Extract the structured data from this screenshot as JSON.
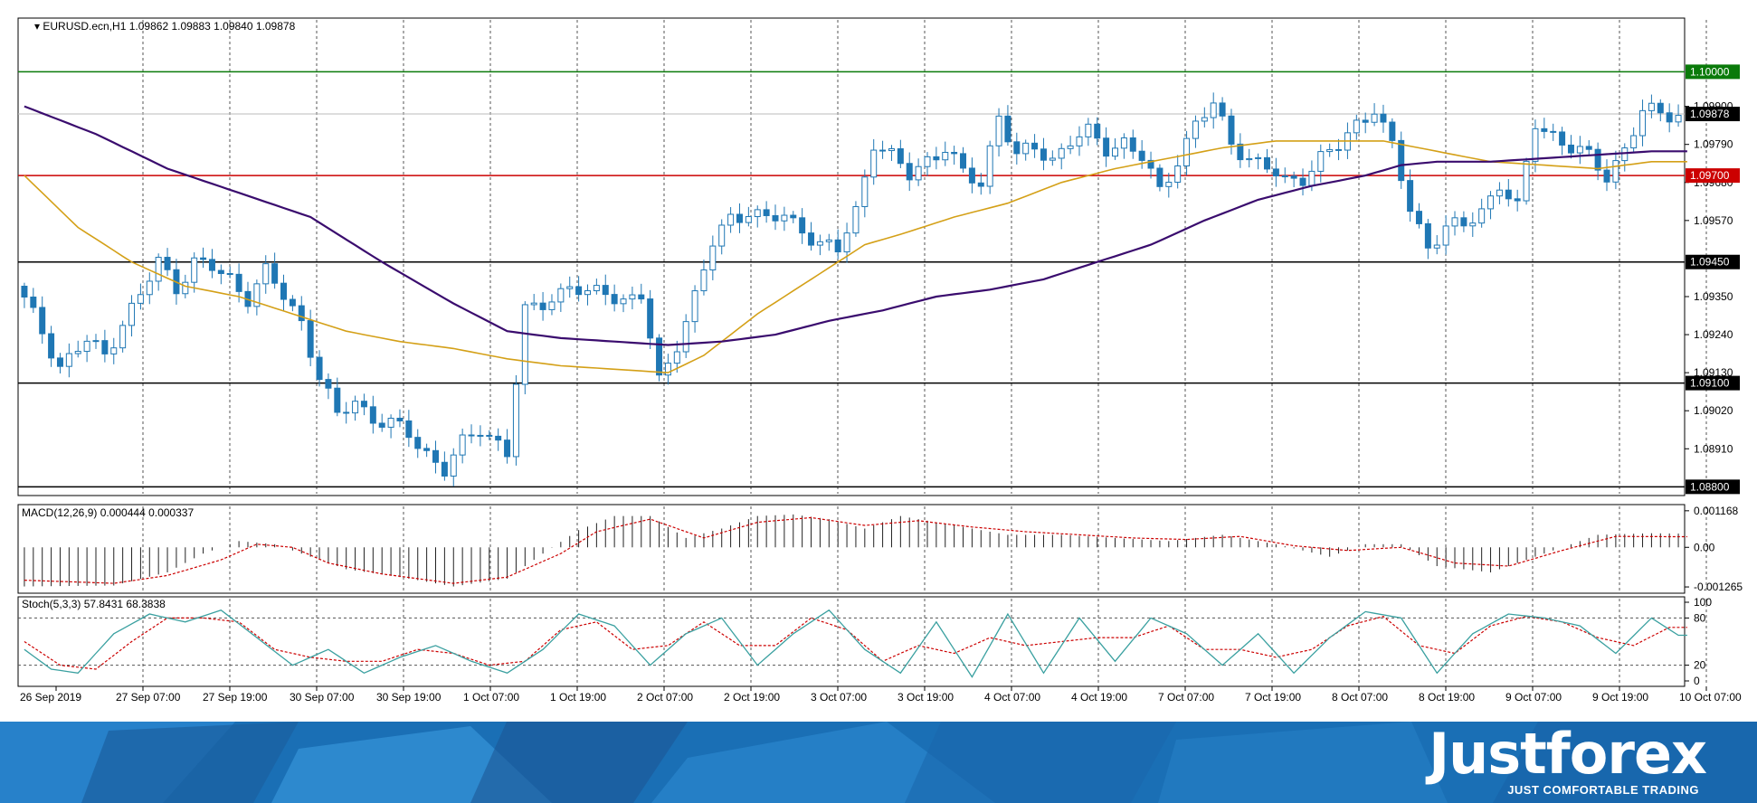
{
  "chart_data": {
    "type": "candlestick",
    "symbol": "EURUSD.ecn,H1",
    "ohlc": "1.09862 1.09883 1.09840 1.09878",
    "x_ticks": [
      "26 Sep 2019",
      "27 Sep 07:00",
      "27 Sep 19:00",
      "30 Sep 07:00",
      "30 Sep 19:00",
      "1 Oct 07:00",
      "1 Oct 19:00",
      "2 Oct 07:00",
      "2 Oct 19:00",
      "3 Oct 07:00",
      "3 Oct 19:00",
      "4 Oct 07:00",
      "4 Oct 19:00",
      "7 Oct 07:00",
      "7 Oct 19:00",
      "8 Oct 07:00",
      "8 Oct 19:00",
      "9 Oct 07:00",
      "9 Oct 19:00",
      "10 Oct 07:00"
    ],
    "price_axis": {
      "ylim": [
        1.0878,
        1.1015
      ],
      "ticks": [
        "1.09900",
        "1.09790",
        "1.09680",
        "1.09570",
        "1.09350",
        "1.09240",
        "1.09130",
        "1.09020",
        "1.08910"
      ],
      "level_labels": [
        "1.10000",
        "1.09878",
        "1.09700",
        "1.09450",
        "1.09100",
        "1.08800"
      ],
      "colors": {
        "green_level": "#0a7a0a",
        "red_level": "#cc0000",
        "current": "#000000"
      }
    },
    "levels": [
      {
        "price": 1.1,
        "color": "#0a7a0a"
      },
      {
        "price": 1.097,
        "color": "#cc0000"
      },
      {
        "price": 1.0945,
        "color": "#000000"
      },
      {
        "price": 1.091,
        "color": "#000000"
      },
      {
        "price": 1.088,
        "color": "#000000"
      }
    ],
    "candle_color": "#1f77b4",
    "ma_fast_color": "#d4a017",
    "ma_slow_color": "#3a0c6e",
    "price_path": [
      [
        0,
        1.0938
      ],
      [
        3,
        1.0925
      ],
      [
        5,
        1.0915
      ],
      [
        8,
        1.0922
      ],
      [
        10,
        1.0918
      ],
      [
        12,
        1.0928
      ],
      [
        14,
        1.0935
      ],
      [
        16,
        1.0945
      ],
      [
        18,
        1.0938
      ],
      [
        20,
        1.0945
      ],
      [
        22,
        1.0943
      ],
      [
        24,
        1.094
      ],
      [
        26,
        1.0935
      ],
      [
        28,
        1.0942
      ],
      [
        30,
        1.0935
      ],
      [
        32,
        1.0928
      ],
      [
        34,
        1.0912
      ],
      [
        36,
        1.09
      ],
      [
        38,
        1.0905
      ],
      [
        40,
        1.09
      ],
      [
        42,
        1.0898
      ],
      [
        44,
        1.0895
      ],
      [
        46,
        1.089
      ],
      [
        48,
        1.0885
      ],
      [
        50,
        1.0892
      ],
      [
        52,
        1.0897
      ],
      [
        54,
        1.0893
      ],
      [
        55,
        1.089
      ],
      [
        57,
        1.093
      ],
      [
        60,
        1.0935
      ],
      [
        62,
        1.0938
      ],
      [
        64,
        1.0935
      ],
      [
        66,
        1.0937
      ],
      [
        68,
        1.0934
      ],
      [
        70,
        1.0935
      ],
      [
        72,
        1.091
      ],
      [
        74,
        1.0922
      ],
      [
        76,
        1.0935
      ],
      [
        78,
        1.095
      ],
      [
        80,
        1.0958
      ],
      [
        82,
        1.096
      ],
      [
        84,
        1.0957
      ],
      [
        86,
        1.0958
      ],
      [
        88,
        1.0955
      ],
      [
        90,
        1.095
      ],
      [
        92,
        1.0948
      ],
      [
        94,
        1.096
      ],
      [
        96,
        1.098
      ],
      [
        98,
        1.0975
      ],
      [
        100,
        1.097
      ],
      [
        102,
        1.0975
      ],
      [
        104,
        1.0978
      ],
      [
        106,
        1.097
      ],
      [
        108,
        1.0968
      ],
      [
        110,
        1.0988
      ],
      [
        112,
        1.0975
      ],
      [
        114,
        1.0978
      ],
      [
        116,
        1.0975
      ],
      [
        118,
        1.098
      ],
      [
        120,
        1.0982
      ],
      [
        122,
        1.0978
      ],
      [
        124,
        1.098
      ],
      [
        126,
        1.0975
      ],
      [
        128,
        1.0965
      ],
      [
        130,
        1.0975
      ],
      [
        132,
        1.0985
      ],
      [
        134,
        1.099
      ],
      [
        136,
        1.098
      ],
      [
        138,
        1.0975
      ],
      [
        140,
        1.0972
      ],
      [
        142,
        1.0968
      ],
      [
        144,
        1.097
      ],
      [
        146,
        1.0975
      ],
      [
        148,
        1.0978
      ],
      [
        150,
        1.0985
      ],
      [
        152,
        1.099
      ],
      [
        154,
        1.0978
      ],
      [
        156,
        1.096
      ],
      [
        158,
        1.095
      ],
      [
        160,
        1.0955
      ],
      [
        162,
        1.0955
      ],
      [
        164,
        1.096
      ],
      [
        166,
        1.0968
      ],
      [
        168,
        1.096
      ],
      [
        170,
        1.0985
      ],
      [
        172,
        1.0982
      ],
      [
        174,
        1.0978
      ],
      [
        176,
        1.0975
      ],
      [
        178,
        1.097
      ],
      [
        180,
        1.0978
      ],
      [
        182,
        1.0988
      ],
      [
        184,
        1.0988
      ],
      [
        185,
        1.0988
      ]
    ],
    "ma_fast": [
      [
        0,
        1.097
      ],
      [
        6,
        1.0955
      ],
      [
        12,
        1.0945
      ],
      [
        18,
        1.0938
      ],
      [
        24,
        1.0935
      ],
      [
        30,
        1.093
      ],
      [
        36,
        1.0925
      ],
      [
        42,
        1.0922
      ],
      [
        48,
        1.092
      ],
      [
        54,
        1.0917
      ],
      [
        60,
        1.0915
      ],
      [
        66,
        1.0914
      ],
      [
        72,
        1.0913
      ],
      [
        76,
        1.0918
      ],
      [
        82,
        1.093
      ],
      [
        88,
        1.094
      ],
      [
        94,
        1.095
      ],
      [
        98,
        1.0953
      ],
      [
        104,
        1.0958
      ],
      [
        110,
        1.0962
      ],
      [
        116,
        1.0968
      ],
      [
        122,
        1.0972
      ],
      [
        128,
        1.0975
      ],
      [
        134,
        1.0978
      ],
      [
        140,
        1.098
      ],
      [
        146,
        1.098
      ],
      [
        152,
        1.098
      ],
      [
        158,
        1.0977
      ],
      [
        164,
        1.0974
      ],
      [
        170,
        1.0973
      ],
      [
        176,
        1.0972
      ],
      [
        182,
        1.0974
      ],
      [
        185,
        1.0974
      ]
    ],
    "ma_slow": [
      [
        0,
        1.099
      ],
      [
        8,
        1.0982
      ],
      [
        16,
        1.0972
      ],
      [
        24,
        1.0965
      ],
      [
        32,
        1.0958
      ],
      [
        40,
        1.0945
      ],
      [
        48,
        1.0933
      ],
      [
        54,
        1.0925
      ],
      [
        60,
        1.0923
      ],
      [
        66,
        1.0922
      ],
      [
        72,
        1.0921
      ],
      [
        78,
        1.0922
      ],
      [
        84,
        1.0924
      ],
      [
        90,
        1.0928
      ],
      [
        96,
        1.0931
      ],
      [
        102,
        1.0935
      ],
      [
        108,
        1.0937
      ],
      [
        114,
        1.094
      ],
      [
        120,
        1.0945
      ],
      [
        126,
        1.095
      ],
      [
        132,
        1.0957
      ],
      [
        138,
        1.0963
      ],
      [
        144,
        1.0967
      ],
      [
        150,
        1.097
      ],
      [
        154,
        1.0973
      ],
      [
        158,
        1.0974
      ],
      [
        164,
        1.0974
      ],
      [
        170,
        1.0975
      ],
      [
        176,
        1.0976
      ],
      [
        182,
        1.0977
      ],
      [
        185,
        1.0977
      ]
    ],
    "macd": {
      "label": "MACD(12,26,9) 0.000444 0.000337",
      "ylim": [
        -0.00135,
        0.00125
      ],
      "ticks": [
        "0.001168",
        "0.00",
        "-0.001265"
      ],
      "hist_path": [
        [
          0,
          -0.00125
        ],
        [
          10,
          -0.00122
        ],
        [
          16,
          -0.0008
        ],
        [
          20,
          -0.0002
        ],
        [
          24,
          0.0002
        ],
        [
          28,
          0.0001
        ],
        [
          32,
          -0.0003
        ],
        [
          36,
          -0.0007
        ],
        [
          42,
          -0.00095
        ],
        [
          48,
          -0.00125
        ],
        [
          54,
          -0.001
        ],
        [
          58,
          -0.0002
        ],
        [
          62,
          0.00055
        ],
        [
          66,
          0.001
        ],
        [
          70,
          0.001
        ],
        [
          74,
          0.0003
        ],
        [
          78,
          0.0006
        ],
        [
          82,
          0.001
        ],
        [
          86,
          0.00105
        ],
        [
          90,
          0.0009
        ],
        [
          94,
          0.0006
        ],
        [
          98,
          0.001
        ],
        [
          102,
          0.0008
        ],
        [
          106,
          0.0006
        ],
        [
          110,
          0.0004
        ],
        [
          116,
          0.0004
        ],
        [
          122,
          0.0003
        ],
        [
          128,
          0.0002
        ],
        [
          134,
          0.0004
        ],
        [
          140,
          0.0001
        ],
        [
          146,
          -0.0003
        ],
        [
          150,
          0.0001
        ],
        [
          154,
          0.0001
        ],
        [
          158,
          -0.0006
        ],
        [
          164,
          -0.0008
        ],
        [
          170,
          -0.0002
        ],
        [
          176,
          0.0004
        ],
        [
          182,
          0.00045
        ],
        [
          185,
          0.00044
        ]
      ],
      "signal_path": [
        [
          0,
          -0.00105
        ],
        [
          10,
          -0.00115
        ],
        [
          16,
          -0.0009
        ],
        [
          22,
          -0.0004
        ],
        [
          26,
          0.0001
        ],
        [
          30,
          0.0
        ],
        [
          34,
          -0.0005
        ],
        [
          40,
          -0.00085
        ],
        [
          48,
          -0.00115
        ],
        [
          54,
          -0.00095
        ],
        [
          60,
          -0.0002
        ],
        [
          64,
          0.0005
        ],
        [
          70,
          0.0009
        ],
        [
          76,
          0.0003
        ],
        [
          82,
          0.0008
        ],
        [
          88,
          0.00095
        ],
        [
          94,
          0.0007
        ],
        [
          100,
          0.00085
        ],
        [
          106,
          0.00065
        ],
        [
          112,
          0.0005
        ],
        [
          118,
          0.0004
        ],
        [
          124,
          0.0003
        ],
        [
          130,
          0.00025
        ],
        [
          136,
          0.00035
        ],
        [
          142,
          5e-05
        ],
        [
          148,
          -0.0001
        ],
        [
          154,
          0.0
        ],
        [
          160,
          -0.0005
        ],
        [
          166,
          -0.0006
        ],
        [
          172,
          -0.0001
        ],
        [
          178,
          0.00035
        ],
        [
          185,
          0.00034
        ]
      ]
    },
    "stoch": {
      "label": "Stoch(5,3,3) 57.8431 68.3838",
      "ylim": [
        0,
        100
      ],
      "ticks": [
        "100",
        "80",
        "20",
        "0"
      ],
      "main_color": "#3aa0a0",
      "signal_color": "#cc0000",
      "main_path": [
        [
          0,
          40
        ],
        [
          3,
          15
        ],
        [
          6,
          10
        ],
        [
          10,
          60
        ],
        [
          14,
          85
        ],
        [
          18,
          75
        ],
        [
          22,
          90
        ],
        [
          26,
          55
        ],
        [
          30,
          20
        ],
        [
          34,
          40
        ],
        [
          38,
          10
        ],
        [
          42,
          30
        ],
        [
          46,
          45
        ],
        [
          50,
          25
        ],
        [
          54,
          10
        ],
        [
          58,
          40
        ],
        [
          62,
          85
        ],
        [
          66,
          70
        ],
        [
          70,
          20
        ],
        [
          74,
          60
        ],
        [
          78,
          80
        ],
        [
          82,
          20
        ],
        [
          86,
          60
        ],
        [
          90,
          90
        ],
        [
          94,
          40
        ],
        [
          98,
          10
        ],
        [
          102,
          75
        ],
        [
          106,
          5
        ],
        [
          110,
          85
        ],
        [
          114,
          10
        ],
        [
          118,
          80
        ],
        [
          122,
          25
        ],
        [
          126,
          80
        ],
        [
          130,
          60
        ],
        [
          134,
          20
        ],
        [
          138,
          60
        ],
        [
          142,
          10
        ],
        [
          146,
          55
        ],
        [
          150,
          88
        ],
        [
          154,
          80
        ],
        [
          158,
          10
        ],
        [
          162,
          60
        ],
        [
          166,
          85
        ],
        [
          170,
          80
        ],
        [
          174,
          70
        ],
        [
          178,
          35
        ],
        [
          182,
          80
        ],
        [
          185,
          58
        ]
      ],
      "signal_path": [
        [
          0,
          50
        ],
        [
          4,
          20
        ],
        [
          8,
          15
        ],
        [
          12,
          50
        ],
        [
          16,
          80
        ],
        [
          20,
          80
        ],
        [
          24,
          75
        ],
        [
          28,
          40
        ],
        [
          32,
          30
        ],
        [
          36,
          25
        ],
        [
          40,
          25
        ],
        [
          44,
          40
        ],
        [
          48,
          35
        ],
        [
          52,
          20
        ],
        [
          56,
          25
        ],
        [
          60,
          65
        ],
        [
          64,
          75
        ],
        [
          68,
          40
        ],
        [
          72,
          45
        ],
        [
          76,
          75
        ],
        [
          80,
          45
        ],
        [
          84,
          45
        ],
        [
          88,
          80
        ],
        [
          92,
          65
        ],
        [
          96,
          25
        ],
        [
          100,
          45
        ],
        [
          104,
          35
        ],
        [
          108,
          55
        ],
        [
          112,
          45
        ],
        [
          116,
          50
        ],
        [
          120,
          55
        ],
        [
          124,
          55
        ],
        [
          128,
          70
        ],
        [
          132,
          40
        ],
        [
          136,
          40
        ],
        [
          140,
          30
        ],
        [
          144,
          40
        ],
        [
          148,
          70
        ],
        [
          152,
          82
        ],
        [
          156,
          45
        ],
        [
          160,
          35
        ],
        [
          164,
          70
        ],
        [
          168,
          82
        ],
        [
          172,
          75
        ],
        [
          176,
          55
        ],
        [
          180,
          45
        ],
        [
          184,
          68
        ],
        [
          185,
          68
        ]
      ]
    }
  },
  "brand": {
    "name": "Justforex",
    "tagline": "JUST COMFORTABLE TRADING",
    "color": "#ffffff",
    "band_color": "#1a6fb5"
  }
}
